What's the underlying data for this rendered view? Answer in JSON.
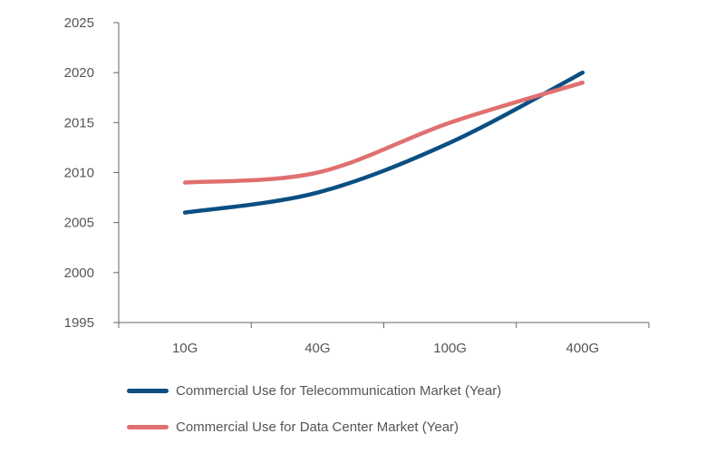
{
  "chart_data": {
    "type": "line",
    "categories": [
      "10G",
      "40G",
      "100G",
      "400G"
    ],
    "series": [
      {
        "name": "Commercial Use for Telecommunication Market (Year)",
        "color": "#0b4f82",
        "values": [
          2006,
          2008,
          2013,
          2020
        ]
      },
      {
        "name": "Commercial Use for Data Center Market (Year)",
        "color": "#e07070",
        "values": [
          2009,
          2010,
          2015,
          2019
        ]
      }
    ],
    "yticks": [
      1995,
      2000,
      2005,
      2010,
      2015,
      2020,
      2025
    ],
    "ylim": [
      1995,
      2025
    ],
    "grid": false,
    "legend_position": "bottom"
  }
}
